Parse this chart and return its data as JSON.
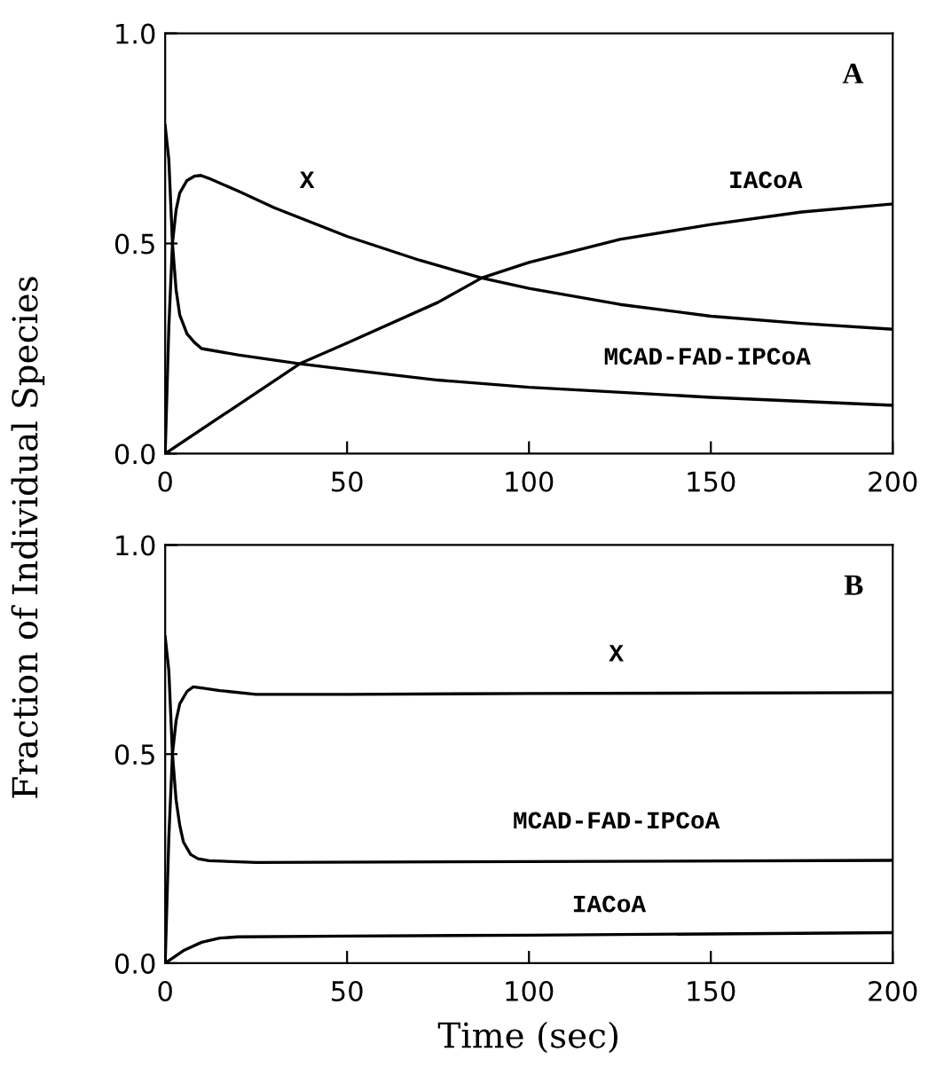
{
  "chart_data": [
    {
      "type": "line",
      "ylabel": "Fraction of Individual Species",
      "xlim": [
        0,
        200
      ],
      "ylim": [
        0,
        1
      ],
      "xticks": [
        0,
        50,
        100,
        150,
        200
      ],
      "yticks": [
        {
          "value": 0,
          "label": "0.0"
        },
        {
          "value": 0.5,
          "label": "0.5"
        },
        {
          "value": 1,
          "label": "1.0"
        }
      ],
      "grid": false,
      "legend": false,
      "series": [
        {
          "name": "X",
          "color": "#000000",
          "x": [
            0,
            1,
            2,
            3,
            4,
            6,
            8,
            9.8,
            12,
            20,
            30,
            50,
            70,
            87,
            100,
            125,
            150,
            175,
            200
          ],
          "values": [
            0,
            0.3,
            0.5,
            0.58,
            0.62,
            0.65,
            0.66,
            0.662,
            0.655,
            0.625,
            0.585,
            0.517,
            0.46,
            0.418,
            0.393,
            0.355,
            0.327,
            0.31,
            0.296
          ]
        },
        {
          "name": "MCAD-FAD-IPCoA",
          "color": "#000000",
          "x": [
            0,
            1,
            2,
            3,
            4,
            6,
            8,
            10,
            20,
            37,
            50,
            75,
            100,
            150,
            200
          ],
          "values": [
            0.78,
            0.7,
            0.5,
            0.39,
            0.33,
            0.285,
            0.265,
            0.25,
            0.235,
            0.214,
            0.2,
            0.175,
            0.158,
            0.134,
            0.115
          ]
        },
        {
          "name": "IACoA",
          "color": "#000000",
          "x": [
            0,
            37,
            50,
            75,
            87,
            100,
            125,
            150,
            175,
            200
          ],
          "values": [
            0,
            0.214,
            0.263,
            0.36,
            0.418,
            0.455,
            0.51,
            0.545,
            0.575,
            0.594
          ]
        }
      ],
      "annotations": [
        "A"
      ]
    },
    {
      "type": "line",
      "xlabel": "Time (sec)",
      "xlim": [
        0,
        200
      ],
      "ylim": [
        0,
        1
      ],
      "xticks": [
        0,
        50,
        100,
        150,
        200
      ],
      "yticks": [
        {
          "value": 0,
          "label": "0.0"
        },
        {
          "value": 0.5,
          "label": "0.5"
        },
        {
          "value": 1,
          "label": "1.0"
        }
      ],
      "grid": false,
      "legend": false,
      "series": [
        {
          "name": "X",
          "color": "#000000",
          "x": [
            0,
            1,
            2,
            3,
            4,
            6,
            7.7,
            10,
            15,
            25,
            50,
            100,
            200
          ],
          "values": [
            0,
            0.3,
            0.5,
            0.58,
            0.62,
            0.65,
            0.661,
            0.658,
            0.652,
            0.643,
            0.643,
            0.645,
            0.647
          ]
        },
        {
          "name": "MCAD-FAD-IPCoA",
          "color": "#000000",
          "x": [
            0,
            1,
            2,
            3,
            4,
            5,
            7,
            9,
            12,
            25,
            100,
            200
          ],
          "values": [
            0.78,
            0.7,
            0.5,
            0.39,
            0.33,
            0.29,
            0.26,
            0.25,
            0.245,
            0.241,
            0.243,
            0.246
          ]
        },
        {
          "name": "IACoA",
          "color": "#000000",
          "x": [
            0,
            5,
            10,
            15,
            20,
            50,
            100,
            200
          ],
          "values": [
            0,
            0.03,
            0.05,
            0.06,
            0.063,
            0.065,
            0.067,
            0.073
          ]
        }
      ],
      "annotations": [
        "B"
      ]
    }
  ]
}
